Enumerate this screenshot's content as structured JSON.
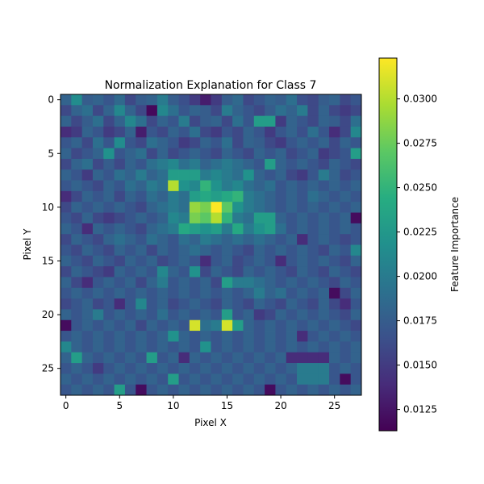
{
  "chart_data": {
    "type": "heatmap",
    "title": "Normalization Explanation for Class 7",
    "xlabel": "Pixel X",
    "ylabel": "Pixel Y",
    "colorbar_label": "Feature Importance",
    "colormap": "viridis",
    "shape": [
      28,
      28
    ],
    "x_ticks": [
      0,
      5,
      10,
      15,
      20,
      25
    ],
    "y_ticks": [
      0,
      5,
      10,
      15,
      20,
      25
    ],
    "colorbar_ticks": [
      "0.0125",
      "0.0150",
      "0.0175",
      "0.0200",
      "0.0225",
      "0.0250",
      "0.0275",
      "0.0300"
    ],
    "vmin": 0.0113,
    "vmax": 0.0323,
    "values": [
      [
        0.018,
        0.0215,
        0.0175,
        0.018,
        0.017,
        0.0185,
        0.016,
        0.0175,
        0.018,
        0.02,
        0.0175,
        0.0165,
        0.015,
        0.013,
        0.015,
        0.0175,
        0.0185,
        0.016,
        0.017,
        0.018,
        0.0175,
        0.019,
        0.0165,
        0.016,
        0.0175,
        0.018,
        0.016,
        0.017
      ],
      [
        0.016,
        0.018,
        0.019,
        0.016,
        0.018,
        0.021,
        0.018,
        0.016,
        0.0118,
        0.021,
        0.019,
        0.017,
        0.018,
        0.0175,
        0.016,
        0.02,
        0.018,
        0.017,
        0.016,
        0.0175,
        0.019,
        0.018,
        0.02,
        0.016,
        0.018,
        0.016,
        0.015,
        0.016
      ],
      [
        0.018,
        0.016,
        0.0175,
        0.019,
        0.016,
        0.018,
        0.021,
        0.019,
        0.016,
        0.018,
        0.017,
        0.02,
        0.016,
        0.0175,
        0.018,
        0.016,
        0.019,
        0.017,
        0.023,
        0.023,
        0.015,
        0.018,
        0.017,
        0.016,
        0.018,
        0.0175,
        0.016,
        0.019
      ],
      [
        0.014,
        0.015,
        0.018,
        0.017,
        0.015,
        0.016,
        0.018,
        0.013,
        0.017,
        0.016,
        0.018,
        0.017,
        0.019,
        0.016,
        0.015,
        0.017,
        0.016,
        0.018,
        0.017,
        0.015,
        0.017,
        0.018,
        0.0165,
        0.019,
        0.017,
        0.014,
        0.016,
        0.021
      ],
      [
        0.017,
        0.018,
        0.016,
        0.019,
        0.017,
        0.0215,
        0.017,
        0.016,
        0.019,
        0.018,
        0.017,
        0.015,
        0.016,
        0.018,
        0.017,
        0.019,
        0.016,
        0.018,
        0.0175,
        0.016,
        0.015,
        0.017,
        0.018,
        0.017,
        0.018,
        0.016,
        0.018,
        0.017
      ],
      [
        0.018,
        0.016,
        0.017,
        0.018,
        0.022,
        0.017,
        0.018,
        0.019,
        0.016,
        0.018,
        0.016,
        0.017,
        0.018,
        0.017,
        0.016,
        0.018,
        0.017,
        0.016,
        0.018,
        0.017,
        0.018,
        0.016,
        0.017,
        0.018,
        0.015,
        0.016,
        0.017,
        0.023
      ],
      [
        0.016,
        0.018,
        0.019,
        0.016,
        0.0175,
        0.016,
        0.018,
        0.017,
        0.019,
        0.02,
        0.021,
        0.019,
        0.02,
        0.018,
        0.019,
        0.02,
        0.019,
        0.018,
        0.017,
        0.023,
        0.018,
        0.017,
        0.018,
        0.017,
        0.016,
        0.018,
        0.017,
        0.016
      ],
      [
        0.018,
        0.017,
        0.015,
        0.018,
        0.017,
        0.019,
        0.018,
        0.02,
        0.018,
        0.019,
        0.023,
        0.023,
        0.023,
        0.02,
        0.021,
        0.02,
        0.019,
        0.022,
        0.018,
        0.017,
        0.018,
        0.016,
        0.015,
        0.017,
        0.02,
        0.018,
        0.016,
        0.017
      ],
      [
        0.017,
        0.018,
        0.017,
        0.016,
        0.018,
        0.017,
        0.019,
        0.018,
        0.02,
        0.019,
        0.03,
        0.022,
        0.021,
        0.025,
        0.022,
        0.02,
        0.021,
        0.019,
        0.018,
        0.019,
        0.017,
        0.018,
        0.017,
        0.018,
        0.017,
        0.018,
        0.017,
        0.018
      ],
      [
        0.014,
        0.016,
        0.018,
        0.017,
        0.018,
        0.016,
        0.018,
        0.017,
        0.019,
        0.018,
        0.02,
        0.019,
        0.023,
        0.024,
        0.023,
        0.024,
        0.025,
        0.02,
        0.019,
        0.018,
        0.017,
        0.018,
        0.017,
        0.019,
        0.018,
        0.017,
        0.018,
        0.017
      ],
      [
        0.016,
        0.018,
        0.017,
        0.018,
        0.017,
        0.018,
        0.017,
        0.016,
        0.018,
        0.019,
        0.02,
        0.019,
        0.029,
        0.028,
        0.0323,
        0.027,
        0.022,
        0.02,
        0.019,
        0.018,
        0.017,
        0.018,
        0.017,
        0.018,
        0.017,
        0.018,
        0.017,
        0.018
      ],
      [
        0.017,
        0.016,
        0.018,
        0.016,
        0.015,
        0.016,
        0.017,
        0.018,
        0.017,
        0.018,
        0.021,
        0.02,
        0.028,
        0.027,
        0.03,
        0.025,
        0.02,
        0.019,
        0.023,
        0.023,
        0.018,
        0.017,
        0.018,
        0.017,
        0.018,
        0.017,
        0.018,
        0.012
      ],
      [
        0.018,
        0.017,
        0.014,
        0.018,
        0.017,
        0.018,
        0.017,
        0.016,
        0.018,
        0.019,
        0.02,
        0.024,
        0.023,
        0.022,
        0.023,
        0.02,
        0.024,
        0.02,
        0.022,
        0.023,
        0.019,
        0.017,
        0.018,
        0.017,
        0.018,
        0.017,
        0.018,
        0.017
      ],
      [
        0.016,
        0.018,
        0.017,
        0.016,
        0.018,
        0.019,
        0.018,
        0.017,
        0.019,
        0.018,
        0.017,
        0.019,
        0.018,
        0.02,
        0.019,
        0.018,
        0.019,
        0.018,
        0.019,
        0.018,
        0.017,
        0.018,
        0.014,
        0.017,
        0.018,
        0.017,
        0.016,
        0.017
      ],
      [
        0.017,
        0.016,
        0.018,
        0.017,
        0.016,
        0.018,
        0.017,
        0.018,
        0.016,
        0.018,
        0.017,
        0.018,
        0.019,
        0.018,
        0.017,
        0.018,
        0.017,
        0.016,
        0.018,
        0.017,
        0.018,
        0.017,
        0.018,
        0.017,
        0.016,
        0.018,
        0.017,
        0.021
      ],
      [
        0.018,
        0.017,
        0.016,
        0.018,
        0.017,
        0.016,
        0.018,
        0.017,
        0.018,
        0.016,
        0.017,
        0.018,
        0.017,
        0.014,
        0.017,
        0.018,
        0.016,
        0.017,
        0.018,
        0.017,
        0.014,
        0.017,
        0.018,
        0.017,
        0.018,
        0.017,
        0.016,
        0.018
      ],
      [
        0.016,
        0.018,
        0.017,
        0.016,
        0.015,
        0.018,
        0.017,
        0.018,
        0.017,
        0.021,
        0.018,
        0.017,
        0.022,
        0.016,
        0.018,
        0.017,
        0.016,
        0.018,
        0.017,
        0.018,
        0.017,
        0.016,
        0.018,
        0.017,
        0.016,
        0.018,
        0.017,
        0.016
      ],
      [
        0.018,
        0.016,
        0.014,
        0.017,
        0.018,
        0.017,
        0.018,
        0.016,
        0.018,
        0.02,
        0.017,
        0.018,
        0.017,
        0.018,
        0.016,
        0.023,
        0.02,
        0.02,
        0.019,
        0.018,
        0.017,
        0.018,
        0.017,
        0.018,
        0.017,
        0.016,
        0.018,
        0.017
      ],
      [
        0.017,
        0.018,
        0.017,
        0.018,
        0.017,
        0.018,
        0.017,
        0.018,
        0.017,
        0.018,
        0.017,
        0.018,
        0.017,
        0.018,
        0.017,
        0.018,
        0.017,
        0.018,
        0.02,
        0.018,
        0.019,
        0.017,
        0.018,
        0.017,
        0.018,
        0.012,
        0.016,
        0.018
      ],
      [
        0.016,
        0.017,
        0.018,
        0.016,
        0.017,
        0.014,
        0.017,
        0.021,
        0.017,
        0.018,
        0.016,
        0.017,
        0.018,
        0.017,
        0.016,
        0.018,
        0.017,
        0.016,
        0.018,
        0.017,
        0.016,
        0.018,
        0.017,
        0.016,
        0.018,
        0.016,
        0.014,
        0.017
      ],
      [
        0.018,
        0.017,
        0.018,
        0.02,
        0.017,
        0.018,
        0.017,
        0.018,
        0.017,
        0.019,
        0.017,
        0.018,
        0.017,
        0.018,
        0.017,
        0.023,
        0.017,
        0.018,
        0.015,
        0.016,
        0.018,
        0.017,
        0.018,
        0.017,
        0.018,
        0.017,
        0.016,
        0.018
      ],
      [
        0.012,
        0.017,
        0.018,
        0.017,
        0.018,
        0.017,
        0.018,
        0.016,
        0.018,
        0.017,
        0.018,
        0.017,
        0.031,
        0.019,
        0.02,
        0.031,
        0.023,
        0.018,
        0.017,
        0.018,
        0.017,
        0.018,
        0.017,
        0.018,
        0.017,
        0.018,
        0.017,
        0.016
      ],
      [
        0.017,
        0.018,
        0.017,
        0.018,
        0.017,
        0.018,
        0.017,
        0.018,
        0.017,
        0.018,
        0.022,
        0.018,
        0.017,
        0.018,
        0.017,
        0.018,
        0.017,
        0.018,
        0.017,
        0.018,
        0.017,
        0.018,
        0.014,
        0.017,
        0.018,
        0.017,
        0.018,
        0.017
      ],
      [
        0.021,
        0.018,
        0.017,
        0.018,
        0.017,
        0.018,
        0.017,
        0.018,
        0.017,
        0.018,
        0.017,
        0.018,
        0.017,
        0.022,
        0.017,
        0.018,
        0.017,
        0.018,
        0.017,
        0.018,
        0.017,
        0.018,
        0.017,
        0.018,
        0.017,
        0.018,
        0.017,
        0.018
      ],
      [
        0.018,
        0.023,
        0.018,
        0.017,
        0.018,
        0.017,
        0.018,
        0.017,
        0.023,
        0.017,
        0.018,
        0.014,
        0.018,
        0.017,
        0.018,
        0.017,
        0.018,
        0.017,
        0.018,
        0.017,
        0.018,
        0.014,
        0.014,
        0.014,
        0.014,
        0.018,
        0.017,
        0.018
      ],
      [
        0.017,
        0.018,
        0.017,
        0.015,
        0.017,
        0.018,
        0.017,
        0.018,
        0.017,
        0.018,
        0.017,
        0.018,
        0.017,
        0.018,
        0.017,
        0.018,
        0.017,
        0.018,
        0.017,
        0.018,
        0.017,
        0.018,
        0.02,
        0.02,
        0.02,
        0.017,
        0.018,
        0.017
      ],
      [
        0.018,
        0.017,
        0.018,
        0.017,
        0.018,
        0.017,
        0.018,
        0.017,
        0.018,
        0.017,
        0.023,
        0.017,
        0.018,
        0.017,
        0.018,
        0.017,
        0.018,
        0.017,
        0.018,
        0.017,
        0.018,
        0.017,
        0.02,
        0.02,
        0.02,
        0.017,
        0.012,
        0.017
      ],
      [
        0.017,
        0.018,
        0.017,
        0.018,
        0.017,
        0.023,
        0.017,
        0.012,
        0.017,
        0.018,
        0.017,
        0.018,
        0.017,
        0.018,
        0.017,
        0.018,
        0.017,
        0.018,
        0.017,
        0.012,
        0.017,
        0.018,
        0.017,
        0.018,
        0.017,
        0.018,
        0.017,
        0.018
      ]
    ]
  }
}
